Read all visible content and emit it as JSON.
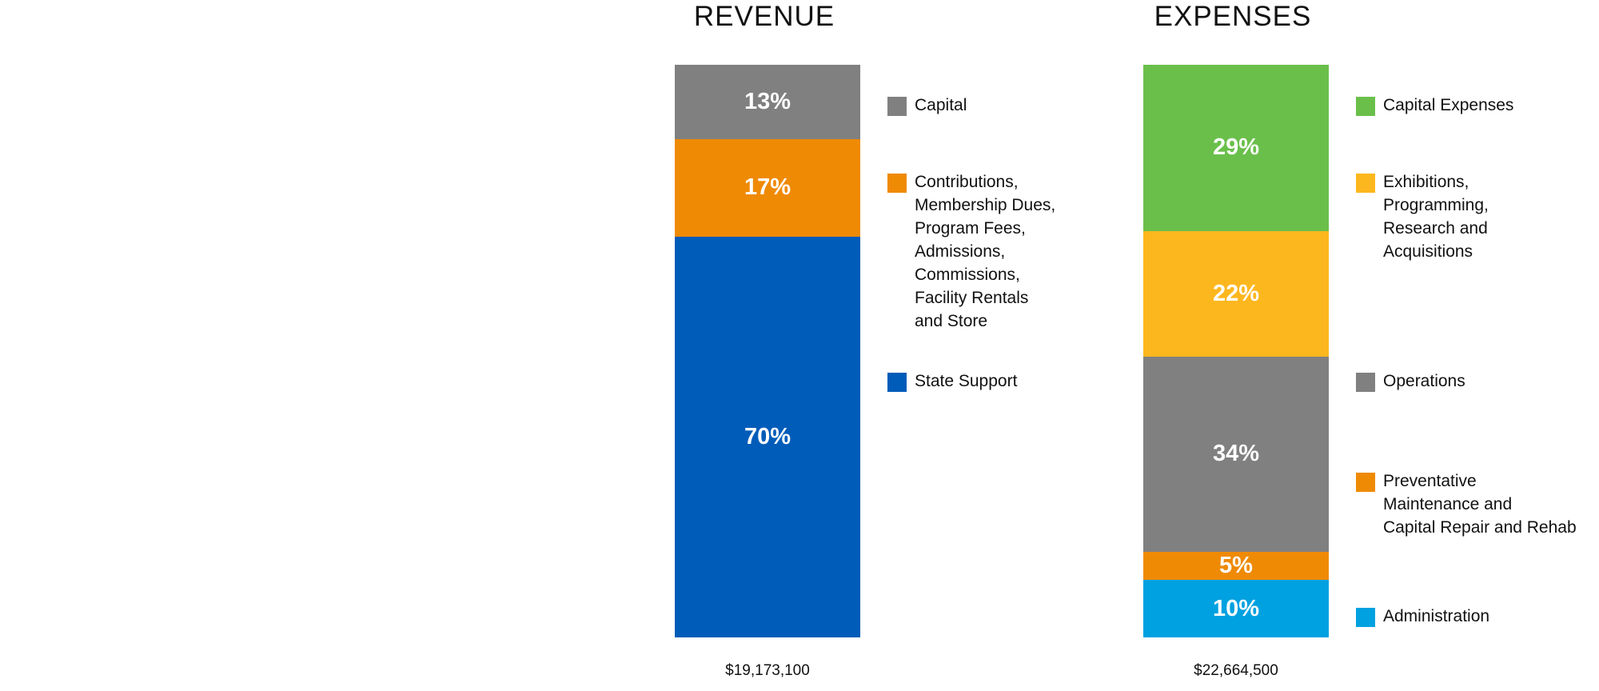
{
  "chart_data": [
    {
      "type": "bar",
      "title": "REVENUE",
      "total": "$19,173,100",
      "series": [
        {
          "name": "Capital",
          "value": 13,
          "label": "13%",
          "color": "#808080"
        },
        {
          "name": "Contributions,\nMembership Dues,\nProgram Fees,\nAdmissions,\nCommissions,\nFacility Rentals\nand Store",
          "value": 17,
          "label": "17%",
          "color": "#ef8a05"
        },
        {
          "name": "State Support",
          "value": 70,
          "label": "70%",
          "color": "#005cb9"
        }
      ]
    },
    {
      "type": "bar",
      "title": "EXPENSES",
      "total": "$22,664,500",
      "series": [
        {
          "name": "Capital Expenses",
          "value": 29,
          "label": "29%",
          "color": "#6abf4b"
        },
        {
          "name": "Exhibitions,\nProgramming,\nResearch and\nAcquisitions",
          "value": 22,
          "label": "22%",
          "color": "#fdb71e"
        },
        {
          "name": "Operations",
          "value": 34,
          "label": "34%",
          "color": "#808080"
        },
        {
          "name": "Preventative\nMaintenance and\nCapital Repair and Rehab",
          "value": 5,
          "label": "5%",
          "color": "#ef8a05"
        },
        {
          "name": "Administration",
          "value": 10,
          "label": "10%",
          "color": "#00a1e0"
        }
      ]
    }
  ]
}
